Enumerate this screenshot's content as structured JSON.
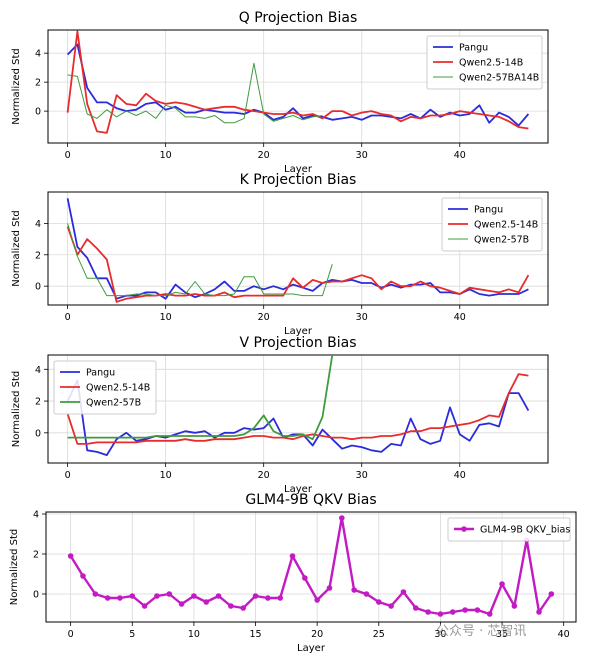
{
  "chart_data": [
    {
      "type": "line",
      "title": "Q Projection Bias",
      "xlabel": "Layer",
      "ylabel": "Normalized Std",
      "xlim": [
        -2,
        49
      ],
      "ylim": [
        -2.2,
        5.6
      ],
      "xticks": [
        0,
        10,
        20,
        30,
        40
      ],
      "yticks": [
        0,
        2,
        4
      ],
      "grid": true,
      "legend_position": "top-right",
      "series": [
        {
          "name": "Pangu",
          "color": "#2b2bdb",
          "width": 1.8,
          "values": [
            3.9,
            4.6,
            1.6,
            0.6,
            0.6,
            0.2,
            0.0,
            0.1,
            0.5,
            0.6,
            0.1,
            0.3,
            -0.1,
            -0.1,
            0.1,
            0.0,
            -0.1,
            -0.1,
            -0.2,
            0.1,
            -0.1,
            -0.6,
            -0.4,
            0.2,
            -0.5,
            -0.3,
            -0.4,
            -0.6,
            -0.5,
            -0.4,
            -0.6,
            -0.3,
            -0.3,
            -0.4,
            -0.5,
            -0.2,
            -0.5,
            0.1,
            -0.4,
            -0.1,
            -0.3,
            -0.2,
            0.4,
            -0.8,
            -0.1,
            -0.4,
            -1.0,
            -0.2
          ]
        },
        {
          "name": "Qwen2.5-14B",
          "color": "#e62c2c",
          "width": 1.8,
          "values": [
            -0.1,
            5.5,
            0.5,
            -1.4,
            -1.5,
            1.1,
            0.5,
            0.4,
            1.2,
            0.7,
            0.5,
            0.6,
            0.5,
            0.3,
            0.1,
            0.2,
            0.3,
            0.3,
            0.1,
            0.0,
            -0.1,
            -0.2,
            -0.2,
            -0.1,
            -0.3,
            -0.2,
            -0.5,
            0.0,
            0.0,
            -0.3,
            -0.1,
            0.0,
            -0.2,
            -0.3,
            -0.7,
            -0.4,
            -0.5,
            -0.3,
            -0.3,
            -0.2,
            0.0,
            -0.1,
            -0.2,
            -0.3,
            -0.4,
            -0.7,
            -1.1,
            -1.2
          ]
        },
        {
          "name": "Qwen2-57BA14B",
          "color": "#3e9b3e",
          "width": 1.0,
          "values": [
            2.5,
            2.4,
            -0.2,
            -0.5,
            0.1,
            -0.4,
            0.0,
            -0.3,
            0.0,
            -0.5,
            0.4,
            0.2,
            -0.4,
            -0.4,
            -0.5,
            -0.3,
            -0.8,
            -0.8,
            -0.5,
            3.3,
            -0.2,
            -0.7,
            -0.5,
            -0.3,
            -0.6,
            -0.4,
            -0.3
          ]
        }
      ]
    },
    {
      "type": "line",
      "title": "K Projection Bias",
      "xlabel": "Layer",
      "ylabel": "Normalized Std",
      "xlim": [
        -2,
        49
      ],
      "ylim": [
        -1.2,
        6.0
      ],
      "xticks": [
        0,
        10,
        20,
        30,
        40
      ],
      "yticks": [
        0,
        2,
        4
      ],
      "grid": true,
      "legend_position": "top-right",
      "series": [
        {
          "name": "Pangu",
          "color": "#2b2bdb",
          "width": 1.8,
          "values": [
            5.6,
            2.5,
            1.8,
            0.5,
            0.5,
            -0.8,
            -0.6,
            -0.6,
            -0.4,
            -0.4,
            -0.8,
            0.1,
            -0.4,
            -0.7,
            -0.5,
            -0.2,
            0.3,
            -0.3,
            -0.3,
            0.0,
            -0.2,
            0.0,
            -0.2,
            0.1,
            -0.1,
            -0.3,
            0.2,
            0.4,
            0.3,
            0.4,
            0.2,
            0.2,
            -0.1,
            0.1,
            -0.1,
            0.1,
            0.1,
            0.2,
            -0.4,
            -0.4,
            -0.5,
            -0.2,
            -0.5,
            -0.6,
            -0.5,
            -0.5,
            -0.5,
            -0.2
          ]
        },
        {
          "name": "Qwen2.5-14B",
          "color": "#e62c2c",
          "width": 1.8,
          "values": [
            3.8,
            2.0,
            3.0,
            2.4,
            1.7,
            -1.0,
            -0.8,
            -0.7,
            -0.6,
            -0.6,
            -0.5,
            -0.6,
            -0.6,
            -0.5,
            -0.6,
            -0.6,
            -0.4,
            -0.7,
            -0.6,
            -0.6,
            -0.6,
            -0.6,
            -0.6,
            0.5,
            -0.1,
            0.4,
            0.2,
            0.3,
            0.3,
            0.5,
            0.7,
            0.5,
            -0.2,
            0.3,
            0.0,
            0.0,
            0.3,
            0.0,
            -0.1,
            -0.3,
            -0.5,
            -0.1,
            -0.2,
            -0.3,
            -0.4,
            -0.2,
            -0.4,
            0.7
          ]
        },
        {
          "name": "Qwen2-57B",
          "color": "#3e9b3e",
          "width": 1.0,
          "values": [
            4.0,
            1.9,
            0.5,
            0.5,
            -0.6,
            -0.6,
            -0.6,
            -0.5,
            -0.5,
            -0.6,
            -0.6,
            -0.4,
            -0.5,
            0.3,
            -0.5,
            -0.6,
            -0.6,
            -0.5,
            0.6,
            0.6,
            -0.5,
            -0.5,
            -0.5,
            -0.5,
            -0.6,
            -0.6,
            -0.6,
            1.4
          ]
        }
      ]
    },
    {
      "type": "line",
      "title": "V Projection Bias",
      "xlabel": "Layer",
      "ylabel": "Normalized Std",
      "xlim": [
        -2,
        49
      ],
      "ylim": [
        -1.9,
        4.9
      ],
      "xticks": [
        0,
        10,
        20,
        30,
        40
      ],
      "yticks": [
        0,
        2,
        4
      ],
      "grid": true,
      "legend_position": "top-left",
      "series": [
        {
          "name": "Pangu",
          "color": "#2b2bdb",
          "width": 1.8,
          "values": [
            2.0,
            3.3,
            -1.1,
            -1.2,
            -1.4,
            -0.4,
            0.0,
            -0.5,
            -0.4,
            -0.2,
            -0.3,
            -0.1,
            0.1,
            0.0,
            0.1,
            -0.3,
            0.0,
            0.0,
            0.3,
            0.2,
            0.3,
            0.9,
            -0.3,
            -0.1,
            -0.1,
            -0.8,
            0.2,
            -0.4,
            -1.0,
            -0.8,
            -0.9,
            -1.1,
            -1.2,
            -0.7,
            -0.8,
            0.9,
            -0.4,
            -0.7,
            -0.5,
            1.6,
            -0.1,
            -0.5,
            0.5,
            0.6,
            0.4,
            2.5,
            2.5,
            1.4
          ]
        },
        {
          "name": "Qwen2.5-14B",
          "color": "#e62c2c",
          "width": 1.8,
          "values": [
            1.2,
            -0.7,
            -0.7,
            -0.6,
            -0.6,
            -0.6,
            -0.6,
            -0.6,
            -0.5,
            -0.5,
            -0.5,
            -0.5,
            -0.4,
            -0.5,
            -0.5,
            -0.4,
            -0.4,
            -0.4,
            -0.3,
            -0.2,
            -0.2,
            -0.3,
            -0.3,
            -0.4,
            -0.2,
            -0.1,
            -0.2,
            -0.3,
            -0.3,
            -0.4,
            -0.3,
            -0.3,
            -0.2,
            -0.2,
            -0.1,
            0.1,
            0.1,
            0.3,
            0.3,
            0.4,
            0.5,
            0.6,
            0.8,
            1.1,
            1.0,
            2.5,
            3.7,
            3.6
          ]
        },
        {
          "name": "Qwen2-57B",
          "color": "#3e9b3e",
          "width": 1.8,
          "values": [
            -0.3,
            -0.3,
            -0.3,
            -0.3,
            -0.3,
            -0.3,
            -0.3,
            -0.3,
            -0.3,
            -0.2,
            -0.2,
            -0.2,
            -0.2,
            -0.2,
            -0.2,
            -0.2,
            -0.2,
            -0.2,
            -0.1,
            0.3,
            1.1,
            0.1,
            -0.2,
            -0.2,
            -0.1,
            -0.4,
            1.0,
            4.9
          ]
        }
      ]
    },
    {
      "type": "line",
      "title": "GLM4-9B QKV Bias",
      "xlabel": "Layer",
      "ylabel": "Normalized Std",
      "xlim": [
        -2,
        41
      ],
      "ylim": [
        -1.4,
        4.1
      ],
      "xticks": [
        0,
        5,
        10,
        15,
        20,
        25,
        30,
        35,
        40
      ],
      "yticks": [
        0,
        2,
        4
      ],
      "grid": true,
      "legend_position": "top-right",
      "series": [
        {
          "name": "GLM4-9B QKV_bias",
          "color": "#c21bc4",
          "width": 2.4,
          "marker": "circle",
          "values": [
            1.9,
            0.9,
            0.0,
            -0.2,
            -0.2,
            -0.1,
            -0.6,
            -0.1,
            0.0,
            -0.5,
            -0.1,
            -0.4,
            -0.1,
            -0.6,
            -0.7,
            -0.1,
            -0.2,
            -0.2,
            1.9,
            0.8,
            -0.3,
            0.3,
            3.8,
            0.2,
            0.0,
            -0.4,
            -0.6,
            0.1,
            -0.7,
            -0.9,
            -1.0,
            -0.9,
            -0.8,
            -0.8,
            -1.0,
            0.5,
            -0.6,
            2.7,
            -0.9,
            0.0
          ]
        }
      ]
    }
  ],
  "watermark": "公众号 · 芯智讯"
}
